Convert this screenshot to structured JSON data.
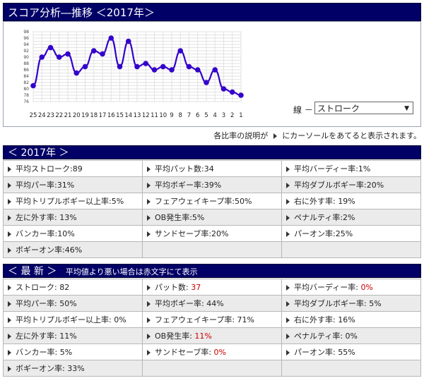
{
  "title": "スコア分析―推移 ＜2017年＞",
  "chart": {
    "x_labels": [
      "25",
      "24",
      "23",
      "22",
      "21",
      "20",
      "19",
      "18",
      "17",
      "16",
      "15",
      "14",
      "13",
      "12",
      "11",
      "10",
      "9",
      "8",
      "7",
      "6",
      "5",
      "4",
      "3",
      "2",
      "1"
    ],
    "y_labels": [
      "98",
      "96",
      "94",
      "92",
      "90",
      "88",
      "86",
      "84",
      "82",
      "80",
      "78",
      "76"
    ],
    "accent": "#3300cc"
  },
  "chart_data": {
    "type": "line",
    "x": [
      "25",
      "24",
      "23",
      "22",
      "21",
      "20",
      "19",
      "18",
      "17",
      "16",
      "15",
      "14",
      "13",
      "12",
      "11",
      "10",
      "9",
      "8",
      "7",
      "6",
      "5",
      "4",
      "3",
      "2",
      "1"
    ],
    "series": [
      {
        "values": [
          81,
          90,
          93,
          90,
          91,
          85,
          87,
          92,
          91,
          96,
          87,
          95,
          87,
          88,
          86,
          87,
          86,
          92,
          87,
          86,
          82,
          86,
          80,
          79,
          78
        ]
      }
    ],
    "ylim": [
      76,
      98
    ],
    "grid": true
  },
  "line_select": {
    "label": "線 －",
    "value": "ストローク"
  },
  "hint": {
    "before": "各比率の説明が",
    "after": "にカーソールをあてると表示されます。"
  },
  "section_2017": {
    "title": "＜ 2017年 ＞"
  },
  "stats_2017": [
    [
      "平均ストローク:89",
      "平均パット数:34",
      "平均バーディー率:1%"
    ],
    [
      "平均パー率:31%",
      "平均ボギー率:39%",
      "平均ダブルボギー率:20%"
    ],
    [
      "平均トリプルボギー以上率:5%",
      "フェアウェイキープ率:50%",
      "右に外す率: 19%"
    ],
    [
      "左に外す率: 13%",
      "OB発生率:5%",
      "ペナルティ率:2%"
    ],
    [
      "バンカー率:10%",
      "サンドセーブ率:20%",
      "パーオン率:25%"
    ],
    [
      "ボギーオン率:46%",
      "",
      ""
    ]
  ],
  "section_latest": {
    "title": "＜ 最 新 ＞",
    "subtitle": "平均値より悪い場合は赤文字にて表示"
  },
  "stats_latest": [
    [
      {
        "label": "ストローク: ",
        "value": "82",
        "red": false
      },
      {
        "label": "パット数: ",
        "value": "37",
        "red": true
      },
      {
        "label": "平均バーディー率: ",
        "value": "0%",
        "red": true
      }
    ],
    [
      {
        "label": "平均パー率: ",
        "value": "50%",
        "red": false
      },
      {
        "label": "平均ボギー率: ",
        "value": "44%",
        "red": false
      },
      {
        "label": "平均ダブルボギー率: ",
        "value": "5%",
        "red": false
      }
    ],
    [
      {
        "label": "平均トリプルボギー以上率: ",
        "value": "0%",
        "red": false
      },
      {
        "label": "フェアウェイキープ率: ",
        "value": "71%",
        "red": false
      },
      {
        "label": "右に外す率: ",
        "value": "16%",
        "red": false
      }
    ],
    [
      {
        "label": "左に外す率: ",
        "value": "11%",
        "red": false
      },
      {
        "label": "OB発生率: ",
        "value": "11%",
        "red": true
      },
      {
        "label": "ペナルティ率: ",
        "value": "0%",
        "red": false
      }
    ],
    [
      {
        "label": "バンカー率: ",
        "value": "5%",
        "red": false
      },
      {
        "label": "サンドセーブ率: ",
        "value": "0%",
        "red": true
      },
      {
        "label": "パーオン率: ",
        "value": "55%",
        "red": false
      }
    ],
    [
      {
        "label": "ボギーオン率: ",
        "value": "33%",
        "red": false
      },
      null,
      null
    ]
  ]
}
